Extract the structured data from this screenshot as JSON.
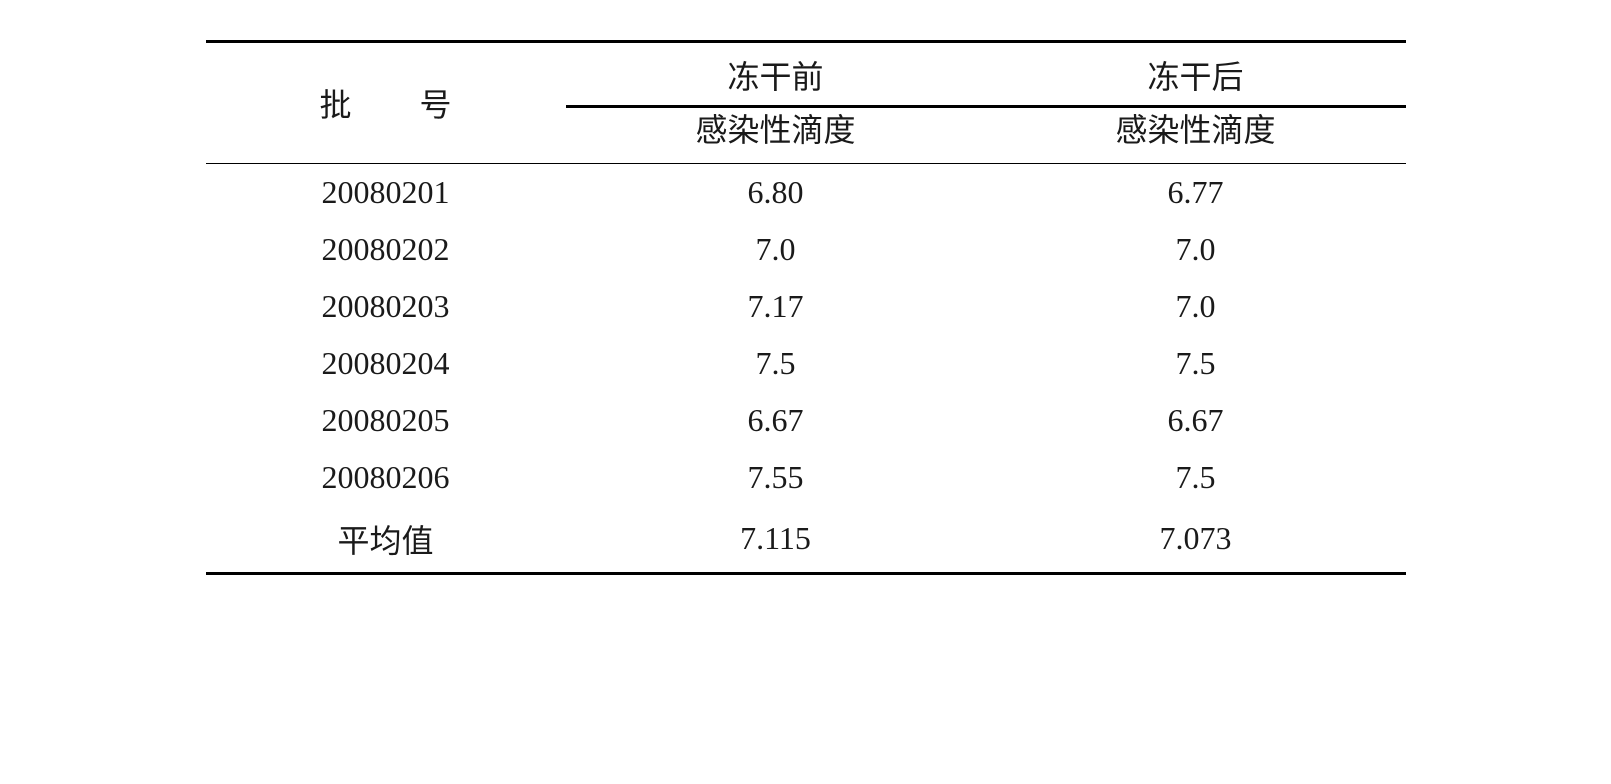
{
  "table": {
    "type": "table",
    "background_color": "#ffffff",
    "text_color": "#1a1a1a",
    "border_color": "#000000",
    "font_size": 32,
    "top_border_width": 3,
    "header_border_width": 1.5,
    "bottom_border_width": 3,
    "columns": {
      "batch": {
        "label_char1": "批",
        "label_char2": "号",
        "label": "批  号",
        "width_pct": 30
      },
      "before": {
        "label_main": "冻干前",
        "label_sub": "感染性滴度",
        "width_pct": 35
      },
      "after": {
        "label_main": "冻干后",
        "label_sub": "感染性滴度",
        "width_pct": 35
      }
    },
    "rows": [
      {
        "batch": "20080201",
        "before": "6.80",
        "after": "6.77"
      },
      {
        "batch": "20080202",
        "before": "7.0",
        "after": "7.0"
      },
      {
        "batch": "20080203",
        "before": "7.17",
        "after": "7.0"
      },
      {
        "batch": "20080204",
        "before": "7.5",
        "after": "7.5"
      },
      {
        "batch": "20080205",
        "before": "6.67",
        "after": "6.67"
      },
      {
        "batch": "20080206",
        "before": "7.55",
        "after": "7.5"
      },
      {
        "batch": "平均值",
        "before": "7.115",
        "after": "7.073"
      }
    ]
  }
}
